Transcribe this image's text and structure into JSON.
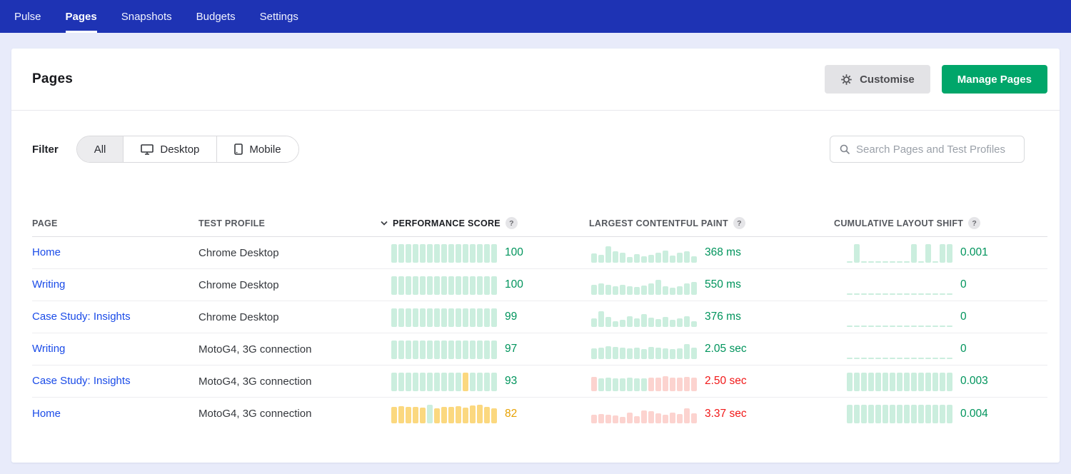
{
  "nav": {
    "items": [
      {
        "label": "Pulse",
        "active": false
      },
      {
        "label": "Pages",
        "active": true
      },
      {
        "label": "Snapshots",
        "active": false
      },
      {
        "label": "Budgets",
        "active": false
      },
      {
        "label": "Settings",
        "active": false
      }
    ]
  },
  "header": {
    "title": "Pages",
    "customise_label": "Customise",
    "manage_pages_label": "Manage Pages"
  },
  "filter": {
    "label": "Filter",
    "options": [
      {
        "label": "All",
        "icon": null,
        "selected": true
      },
      {
        "label": "Desktop",
        "icon": "desktop-icon",
        "selected": false
      },
      {
        "label": "Mobile",
        "icon": "mobile-icon",
        "selected": false
      }
    ]
  },
  "search": {
    "placeholder": "Search Pages and Test Profiles",
    "icon": "search-icon"
  },
  "table": {
    "help_label": "?",
    "columns": [
      {
        "label": "PAGE",
        "sorted": false,
        "help": false
      },
      {
        "label": "TEST PROFILE",
        "sorted": false,
        "help": false
      },
      {
        "label": "PERFORMANCE SCORE",
        "sorted": true,
        "help": true
      },
      {
        "label": "LARGEST CONTENTFUL PAINT",
        "sorted": false,
        "help": true
      },
      {
        "label": "CUMULATIVE LAYOUT SHIFT",
        "sorted": false,
        "help": true
      }
    ],
    "rows": [
      {
        "page": "Home",
        "profile": "Chrome Desktop",
        "performance": {
          "heights": [
            100,
            100,
            100,
            100,
            100,
            100,
            100,
            100,
            100,
            100,
            100,
            100,
            100,
            100,
            100
          ],
          "palette": "green",
          "value": "100",
          "tone": "green"
        },
        "lcp": {
          "heights": [
            50,
            42,
            88,
            62,
            52,
            30,
            45,
            35,
            42,
            55,
            65,
            38,
            52,
            60,
            35
          ],
          "palette": "green",
          "value": "368 ms",
          "tone": "green"
        },
        "cls": {
          "heights": [
            0,
            100,
            0,
            0,
            0,
            0,
            0,
            0,
            0,
            100,
            0,
            100,
            0,
            100,
            100
          ],
          "palette": "green",
          "value": "0.001",
          "tone": "green"
        }
      },
      {
        "page": "Writing",
        "profile": "Chrome Desktop",
        "performance": {
          "heights": [
            100,
            100,
            100,
            100,
            100,
            100,
            100,
            100,
            100,
            100,
            100,
            100,
            100,
            100,
            100
          ],
          "palette": "green",
          "value": "100",
          "tone": "green"
        },
        "lcp": {
          "heights": [
            55,
            60,
            52,
            48,
            55,
            45,
            42,
            50,
            62,
            80,
            45,
            40,
            48,
            60,
            68
          ],
          "palette": "green",
          "value": "550 ms",
          "tone": "green"
        },
        "cls": {
          "heights": [
            0,
            0,
            0,
            0,
            0,
            0,
            0,
            0,
            0,
            0,
            0,
            0,
            0,
            0,
            0
          ],
          "palette": "green",
          "value": "0",
          "tone": "green"
        }
      },
      {
        "page": "Case Study: Insights",
        "profile": "Chrome Desktop",
        "performance": {
          "heights": [
            100,
            100,
            100,
            100,
            100,
            100,
            100,
            100,
            100,
            100,
            100,
            100,
            100,
            100,
            100
          ],
          "palette": "green",
          "value": "99",
          "tone": "green"
        },
        "lcp": {
          "heights": [
            45,
            85,
            55,
            32,
            40,
            58,
            45,
            68,
            50,
            42,
            55,
            38,
            45,
            58,
            32
          ],
          "palette": "green",
          "value": "376 ms",
          "tone": "green"
        },
        "cls": {
          "heights": [
            0,
            0,
            0,
            0,
            0,
            0,
            0,
            0,
            0,
            0,
            0,
            0,
            0,
            0,
            0
          ],
          "palette": "green",
          "value": "0",
          "tone": "green"
        }
      },
      {
        "page": "Writing",
        "profile": "MotoG4, 3G connection",
        "performance": {
          "heights": [
            100,
            100,
            100,
            100,
            100,
            100,
            100,
            100,
            100,
            100,
            100,
            100,
            100,
            100,
            100
          ],
          "palette": "green",
          "value": "97",
          "tone": "green"
        },
        "lcp": {
          "heights": [
            58,
            62,
            70,
            66,
            62,
            58,
            60,
            55,
            64,
            60,
            56,
            52,
            58,
            80,
            62
          ],
          "palette": "green",
          "value": "2.05 sec",
          "tone": "green"
        },
        "cls": {
          "heights": [
            0,
            0,
            0,
            0,
            0,
            0,
            0,
            0,
            0,
            0,
            0,
            0,
            0,
            0,
            0
          ],
          "palette": "green",
          "value": "0",
          "tone": "green"
        }
      },
      {
        "page": "Case Study: Insights",
        "profile": "MotoG4, 3G connection",
        "performance": {
          "heights": [
            100,
            100,
            100,
            100,
            100,
            100,
            100,
            100,
            100,
            100,
            100,
            100,
            100,
            100,
            100
          ],
          "palette": [
            "green",
            "green",
            "green",
            "green",
            "green",
            "green",
            "green",
            "green",
            "green",
            "green",
            "yellow",
            "green",
            "green",
            "green",
            "green"
          ],
          "value": "93",
          "tone": "green"
        },
        "lcp": {
          "heights": [
            78,
            68,
            72,
            70,
            68,
            72,
            70,
            68,
            74,
            72,
            82,
            74,
            72,
            76,
            74
          ],
          "palette": [
            "red",
            "green",
            "green",
            "green",
            "green",
            "green",
            "green",
            "green",
            "red",
            "red",
            "red",
            "red",
            "red",
            "red",
            "red"
          ],
          "value": "2.50 sec",
          "tone": "red"
        },
        "cls": {
          "heights": [
            100,
            100,
            100,
            100,
            100,
            100,
            100,
            100,
            100,
            100,
            100,
            100,
            100,
            100,
            100
          ],
          "palette": "green",
          "value": "0.003",
          "tone": "green"
        }
      },
      {
        "page": "Home",
        "profile": "MotoG4, 3G connection",
        "performance": {
          "heights": [
            88,
            92,
            90,
            88,
            85,
            100,
            82,
            88,
            88,
            92,
            85,
            95,
            100,
            88,
            80
          ],
          "palette": [
            "yellow",
            "yellow",
            "yellow",
            "yellow",
            "yellow",
            "green",
            "yellow",
            "yellow",
            "yellow",
            "yellow",
            "yellow",
            "yellow",
            "yellow",
            "yellow",
            "yellow"
          ],
          "value": "82",
          "tone": "orange"
        },
        "lcp": {
          "heights": [
            45,
            50,
            45,
            42,
            35,
            58,
            40,
            68,
            65,
            55,
            45,
            58,
            50,
            80,
            55
          ],
          "palette": "red",
          "value": "3.37 sec",
          "tone": "red"
        },
        "cls": {
          "heights": [
            100,
            100,
            100,
            100,
            100,
            100,
            100,
            100,
            100,
            100,
            100,
            100,
            100,
            100,
            100
          ],
          "palette": "green",
          "value": "0.004",
          "tone": "green"
        }
      }
    ]
  },
  "colors": {
    "nav_background": "#1e33b4",
    "page_background": "#e8ebfa",
    "manage_button_green": "#00a66a",
    "link_blue": "#1a4be8",
    "tones": {
      "green": "#00945c",
      "orange": "#e7a100",
      "red": "#f11818"
    },
    "bars": {
      "green": "#cbeede",
      "yellow": "#fbd87f",
      "red": "#fcd3cf"
    }
  }
}
